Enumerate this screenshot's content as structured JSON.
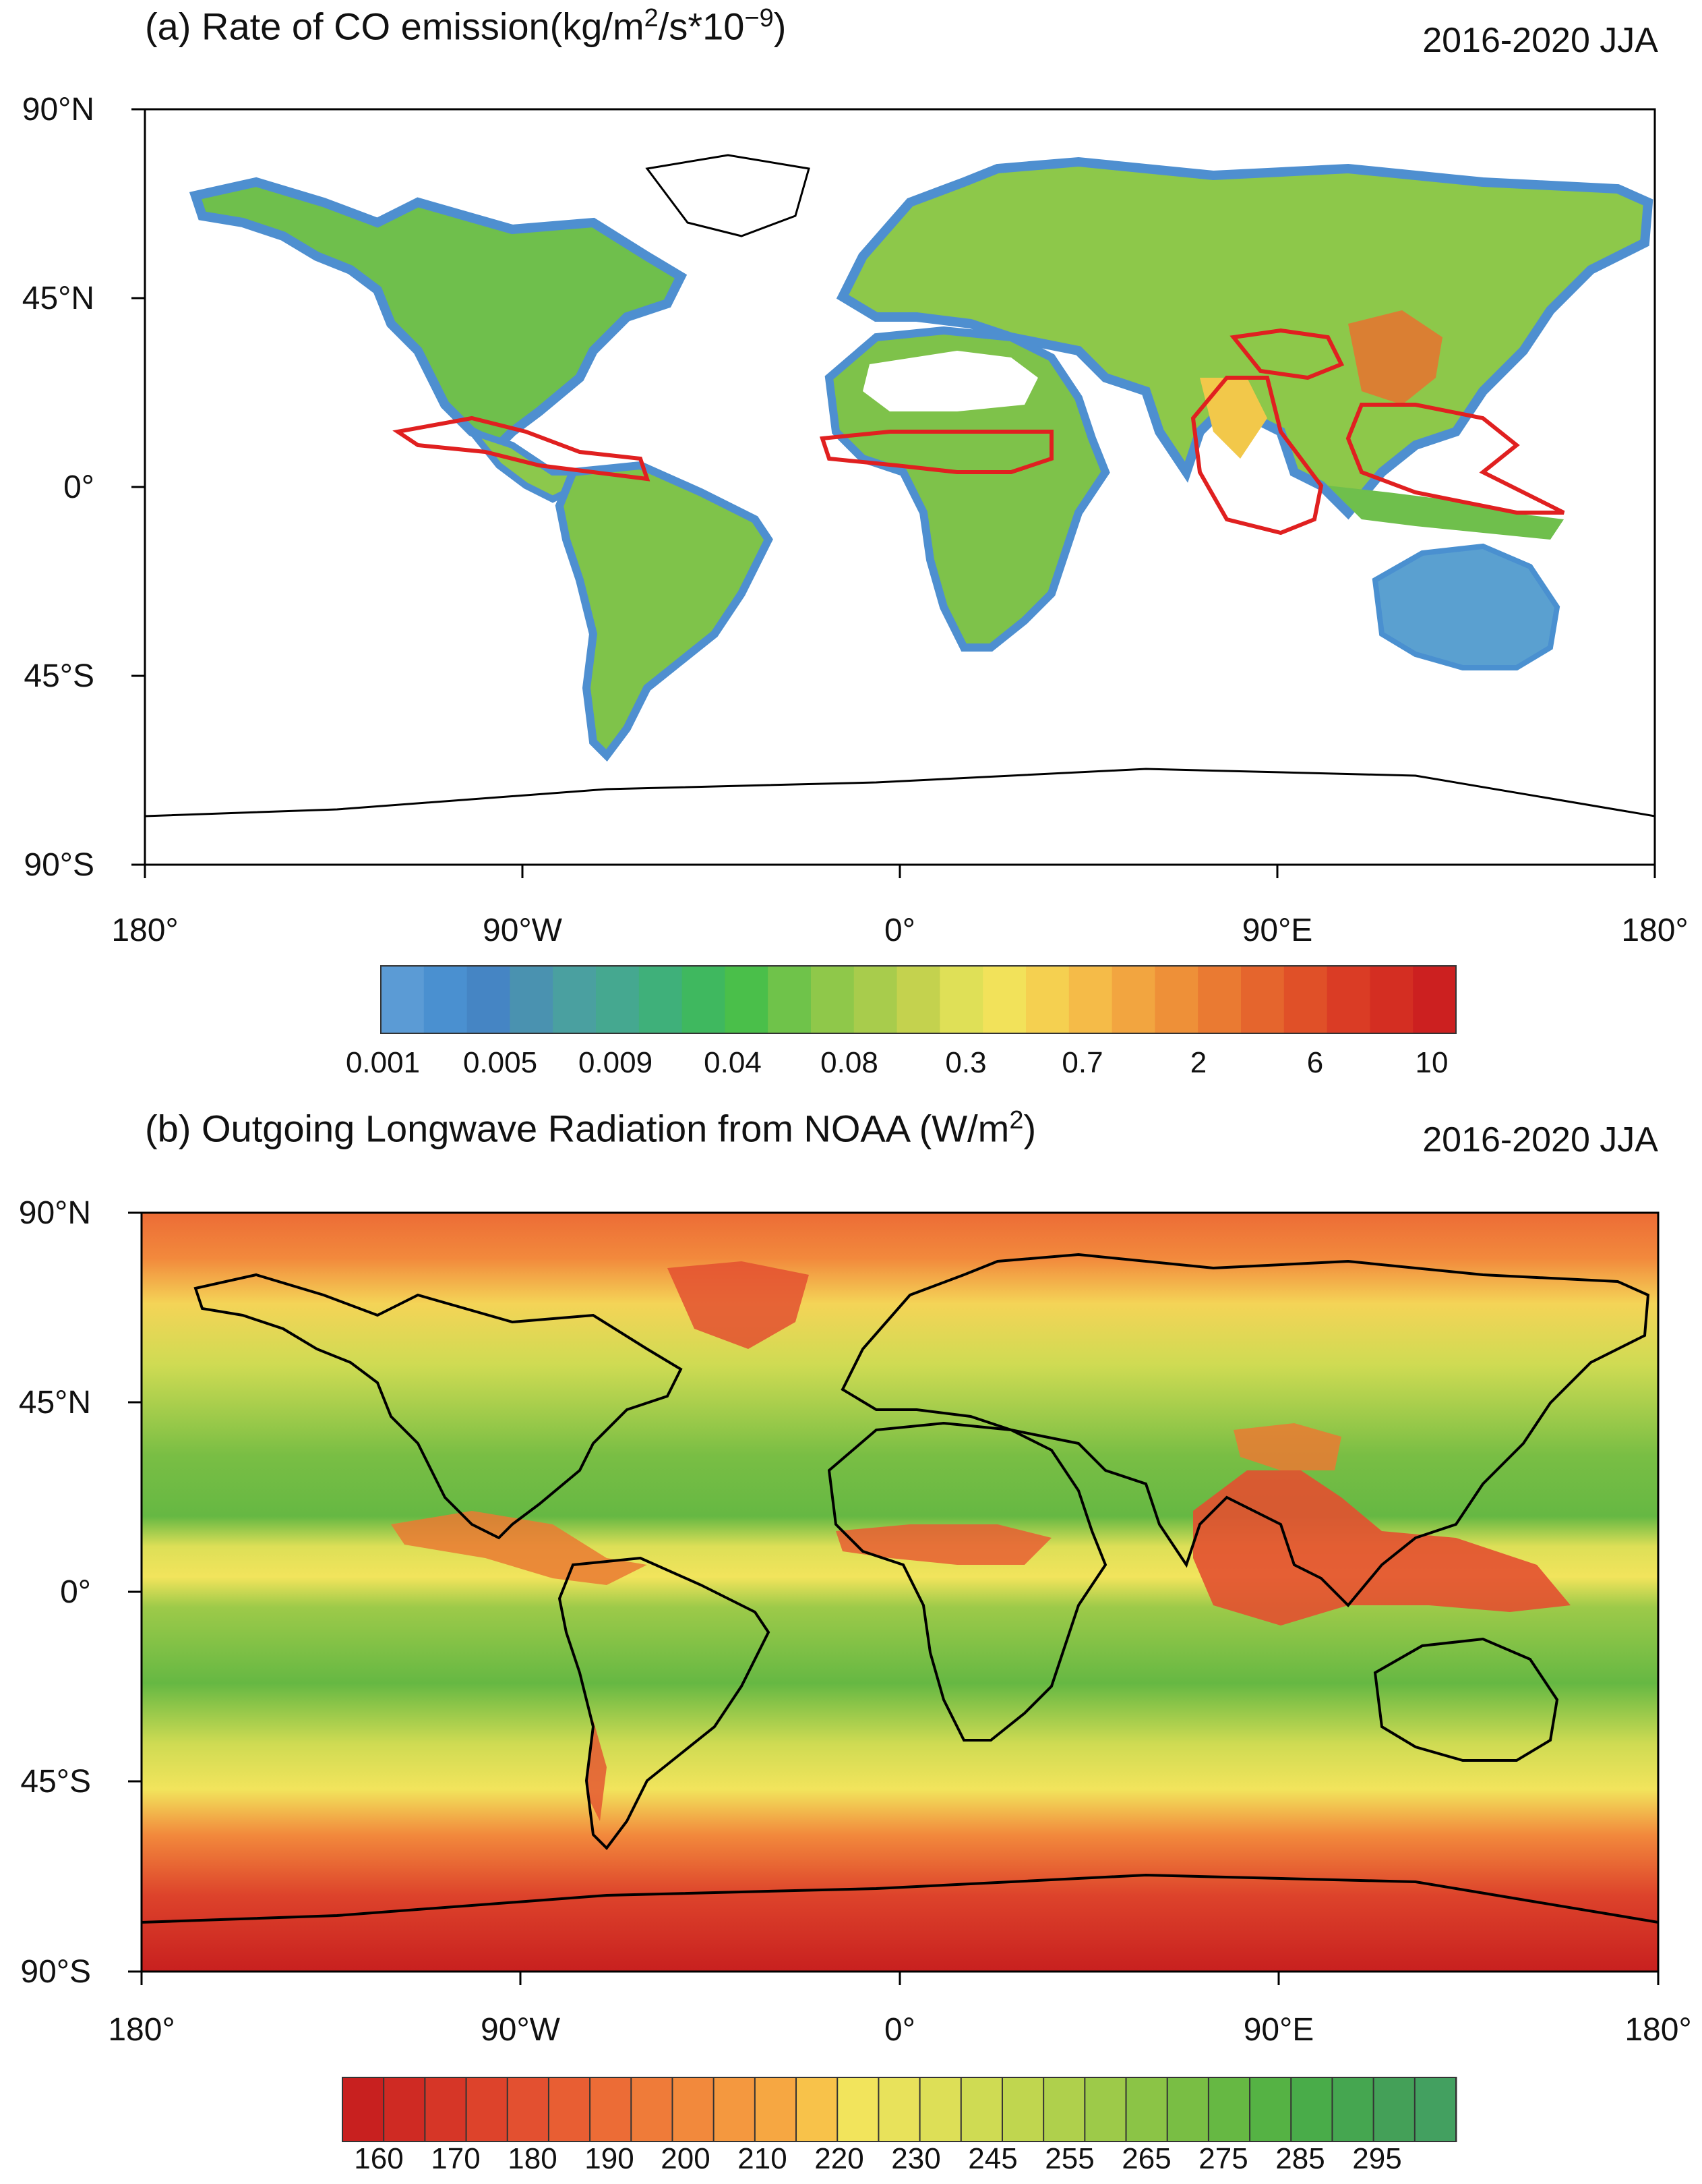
{
  "panel_a": {
    "title_prefix": "(a) Rate of CO emission(kg/m",
    "title_sup1": "2",
    "title_mid": "/s*10",
    "title_sup2": "−9",
    "title_suffix": ")",
    "period": "2016-2020 JJA",
    "lat_labels": [
      "90°N",
      "45°N",
      "0°",
      "45°S",
      "90°S"
    ],
    "lon_labels": [
      "180°",
      "90°W",
      "0°",
      "90°E",
      "180°"
    ],
    "colorbar_labels": [
      "0.001",
      "0.005",
      "0.009",
      "0.04",
      "0.08",
      "0.3",
      "0.7",
      "2",
      "6",
      "10"
    ],
    "colorbar_colors": [
      "#5b9bd5",
      "#4a90d0",
      "#4585c4",
      "#4a92b0",
      "#4aa0a0",
      "#45a890",
      "#3fb07a",
      "#3fb85f",
      "#4abf4a",
      "#6fc34a",
      "#8fc84a",
      "#a8cc4c",
      "#c4d24e",
      "#dfe057",
      "#f2e25a",
      "#f5d050",
      "#f5bb48",
      "#f2a540",
      "#ee9038",
      "#ea7a32",
      "#e5652d",
      "#e05028",
      "#da3c25",
      "#d42e22",
      "#cc2020"
    ],
    "highlight_color": "#e02020"
  },
  "panel_b": {
    "title_prefix": "(b) Outgoing Longwave Radiation from NOAA (W/m",
    "title_sup1": "2",
    "title_suffix": ")",
    "period": "2016-2020 JJA",
    "lat_labels": [
      "90°N",
      "45°N",
      "0°",
      "45°S",
      "90°S"
    ],
    "lon_labels": [
      "180°",
      "90°W",
      "0°",
      "90°E",
      "180°"
    ],
    "colorbar_labels": [
      "160",
      "170",
      "180",
      "190",
      "200",
      "210",
      "220",
      "230",
      "245",
      "255",
      "265",
      "275",
      "285",
      "295"
    ],
    "colorbar_colors": [
      "#c8201f",
      "#cf2a23",
      "#d63627",
      "#dd432b",
      "#e35030",
      "#e85e33",
      "#ec6c36",
      "#ef7b39",
      "#f2893c",
      "#f4983f",
      "#f6a742",
      "#f8c24a",
      "#f2e45c",
      "#e8e25b",
      "#dddf57",
      "#cfdb53",
      "#c0d64f",
      "#afd04c",
      "#9dca49",
      "#8bc446",
      "#79be44",
      "#66b843",
      "#55b244",
      "#49ac49",
      "#45a650",
      "#44a058",
      "#43a060"
    ],
    "field_colors": {
      "polar": "#cc2020",
      "high_lat": "#e04a28",
      "mid": "#e9dd55",
      "subtropic": "#66b843",
      "tropic_dry": "#74bb46",
      "convective": "#e35030"
    }
  }
}
